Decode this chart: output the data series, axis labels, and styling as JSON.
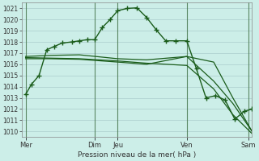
{
  "title": "",
  "xlabel": "Pression niveau de la mer( hPa )",
  "bg_color": "#cceee8",
  "grid_color": "#aacccc",
  "line_color": "#1a5c1a",
  "ylim": [
    1009.5,
    1021.5
  ],
  "xlim": [
    0,
    120
  ],
  "x_tick_pos": [
    2,
    38,
    50,
    86,
    118
  ],
  "x_labels": [
    "Mer",
    "Dim",
    "Jeu",
    "Ven",
    "Sam"
  ],
  "y_ticks": [
    1010,
    1011,
    1012,
    1013,
    1014,
    1015,
    1016,
    1017,
    1018,
    1019,
    1020,
    1021
  ],
  "vline_x": [
    2,
    38,
    50,
    86,
    118
  ],
  "line1_x": [
    2,
    5,
    9,
    13,
    17,
    21,
    26,
    30,
    34,
    38,
    42,
    46,
    50,
    55,
    60,
    65,
    70,
    75,
    80,
    86,
    91,
    96,
    101,
    106,
    111,
    116,
    120
  ],
  "line1_y": [
    1013.3,
    1014.2,
    1015.0,
    1017.3,
    1017.6,
    1017.9,
    1018.0,
    1018.1,
    1018.2,
    1018.2,
    1019.3,
    1020.0,
    1020.8,
    1021.0,
    1021.05,
    1020.2,
    1019.1,
    1018.1,
    1018.1,
    1018.1,
    1015.6,
    1013.0,
    1013.2,
    1012.8,
    1011.1,
    1011.8,
    1012.0
  ],
  "line2_x": [
    2,
    15,
    30,
    50,
    65,
    86,
    100,
    110,
    120
  ],
  "line2_y": [
    1016.7,
    1016.8,
    1016.85,
    1016.5,
    1016.4,
    1016.7,
    1014.5,
    1012.5,
    1010.0
  ],
  "line3_x": [
    2,
    15,
    30,
    50,
    65,
    86,
    100,
    110,
    120
  ],
  "line3_y": [
    1016.6,
    1016.55,
    1016.5,
    1016.3,
    1016.1,
    1015.9,
    1013.8,
    1011.5,
    1009.8
  ],
  "line4_x": [
    2,
    15,
    30,
    50,
    65,
    86,
    100,
    110,
    120
  ],
  "line4_y": [
    1016.5,
    1016.5,
    1016.45,
    1016.2,
    1016.0,
    1016.7,
    1016.2,
    1013.0,
    1010.0
  ]
}
